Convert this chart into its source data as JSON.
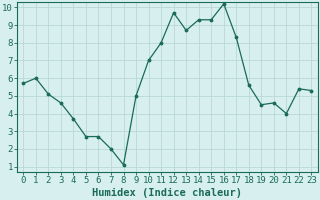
{
  "x": [
    0,
    1,
    2,
    3,
    4,
    5,
    6,
    7,
    8,
    9,
    10,
    11,
    12,
    13,
    14,
    15,
    16,
    17,
    18,
    19,
    20,
    21,
    22,
    23
  ],
  "y": [
    5.7,
    6.0,
    5.1,
    4.6,
    3.7,
    2.7,
    2.7,
    2.0,
    1.1,
    5.0,
    7.0,
    8.0,
    9.7,
    8.7,
    9.3,
    9.3,
    10.2,
    8.3,
    5.6,
    4.5,
    4.6,
    4.0,
    5.4,
    5.3
  ],
  "line_color": "#1a6b5a",
  "marker": ".",
  "xlabel": "Humidex (Indice chaleur)",
  "xlim_min": -0.5,
  "xlim_max": 23.5,
  "ylim_min": 0.7,
  "ylim_max": 10.3,
  "yticks": [
    1,
    2,
    3,
    4,
    5,
    6,
    7,
    8,
    9,
    10
  ],
  "xticks": [
    0,
    1,
    2,
    3,
    4,
    5,
    6,
    7,
    8,
    9,
    10,
    11,
    12,
    13,
    14,
    15,
    16,
    17,
    18,
    19,
    20,
    21,
    22,
    23
  ],
  "background_color": "#d8efef",
  "grid_color": "#b8d8d8",
  "xlabel_fontsize": 7.5,
  "tick_fontsize": 6.5
}
